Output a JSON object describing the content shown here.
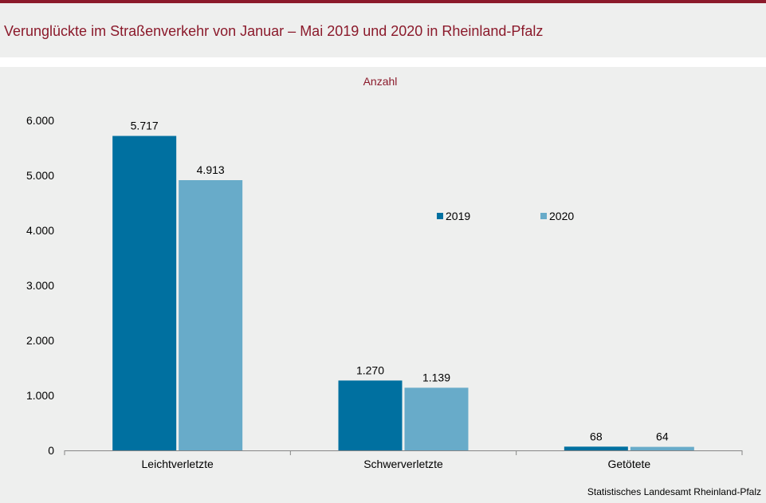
{
  "title": "Verunglückte im Straßenverkehr von Januar – Mai 2019 und 2020 in Rheinland-Pfalz",
  "source": "Statistisches Landesamt  Rheinland-Pfalz",
  "colors": {
    "accent": "#8b1a2b",
    "series_2019": "#0070a0",
    "series_2020": "#68abc9"
  },
  "chart_data": {
    "type": "bar",
    "subtitle": "Anzahl",
    "categories": [
      "Leichtverletzte",
      "Schwerverletzte",
      "Getötete"
    ],
    "series": [
      {
        "name": "2019",
        "values": [
          5717,
          1270,
          68
        ],
        "labels": [
          "5.717",
          "1.270",
          "68"
        ]
      },
      {
        "name": "2020",
        "values": [
          4913,
          1139,
          64
        ],
        "labels": [
          "4.913",
          "1.139",
          "64"
        ]
      }
    ],
    "yticks": [
      0,
      1000,
      2000,
      3000,
      4000,
      5000,
      6000
    ],
    "ytick_labels": [
      "0",
      "1.000",
      "2.000",
      "3.000",
      "4.000",
      "5.000",
      "6.000"
    ],
    "ylim": [
      0,
      6000
    ],
    "grid": false,
    "legend": "center-right"
  }
}
